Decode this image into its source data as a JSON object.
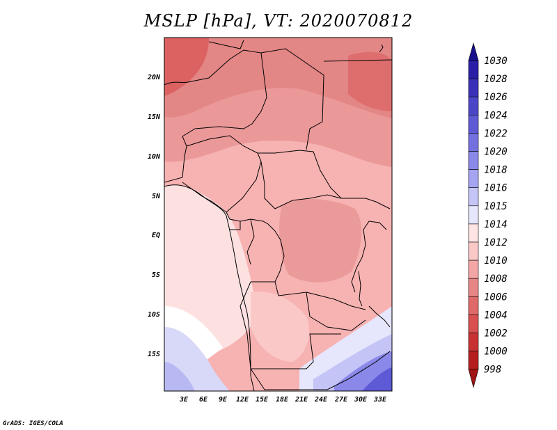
{
  "title": "MSLP [hPa], VT: 2020070812",
  "credit": "GrADS: IGES/COLA",
  "lat_labels": [
    "20N",
    "15N",
    "10N",
    "5N",
    "EQ",
    "5S",
    "10S",
    "15S"
  ],
  "lon_labels": [
    "3E",
    "6E",
    "9E",
    "12E",
    "15E",
    "18E",
    "21E",
    "24E",
    "27E",
    "30E",
    "33E"
  ],
  "colorbar": {
    "labels": [
      "1030",
      "1028",
      "1026",
      "1024",
      "1022",
      "1020",
      "1018",
      "1016",
      "1015",
      "1014",
      "1012",
      "1010",
      "1008",
      "1006",
      "1004",
      "1002",
      "1000",
      "998"
    ],
    "colors": [
      "#1a0f8c",
      "#2a1ea6",
      "#3a30b8",
      "#4c45c8",
      "#5e5ad6",
      "#7470e0",
      "#8a88e8",
      "#a4a4f0",
      "#c4c4f6",
      "#e6e6fc",
      "#ffe4e4",
      "#fbc8c8",
      "#f4a6a6",
      "#e88686",
      "#e06a6a",
      "#d85050",
      "#c83232",
      "#b41e1e",
      "#a01414"
    ]
  }
}
